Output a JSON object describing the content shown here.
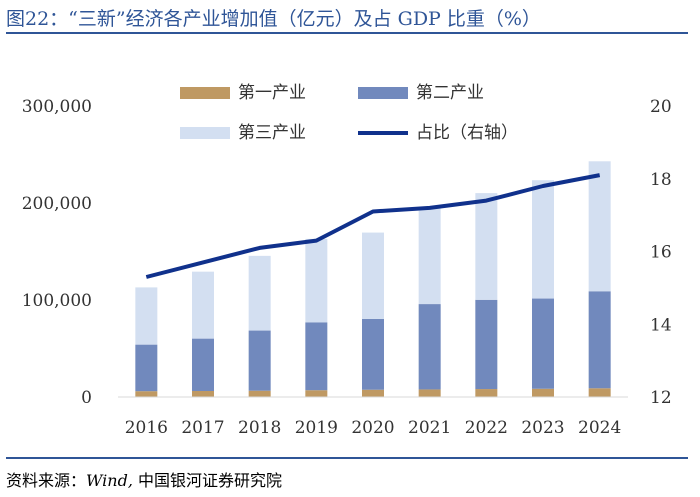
{
  "title": "图22：“三新”经济各产业增加值（亿元）及占 GDP 比重（%）",
  "source_prefix": "资料来源：",
  "source_italic": "Wind,",
  "source_rest": " 中国银河证券研究院",
  "colors": {
    "primary": "#bf9963",
    "secondary": "#7189bd",
    "tertiary": "#d3dff1",
    "share": "#10318c",
    "title": "#2f5597"
  },
  "chart_data": {
    "type": "bar",
    "stacked": true,
    "categories": [
      "2016",
      "2017",
      "2018",
      "2019",
      "2020",
      "2021",
      "2022",
      "2023",
      "2024"
    ],
    "series": [
      {
        "name": "第一产业",
        "axis": "left",
        "values": [
          6000,
          6200,
          6500,
          7000,
          7500,
          7800,
          8200,
          8500,
          9000
        ]
      },
      {
        "name": "第二产业",
        "axis": "left",
        "values": [
          48000,
          54000,
          62000,
          70000,
          73000,
          88000,
          92000,
          93000,
          100000
        ]
      },
      {
        "name": "第三产业",
        "axis": "left",
        "values": [
          59000,
          69000,
          77000,
          86000,
          89000,
          100000,
          110000,
          122000,
          134000
        ]
      },
      {
        "name": "占比（右轴）",
        "axis": "right",
        "type": "line",
        "values": [
          15.3,
          15.7,
          16.1,
          16.3,
          17.1,
          17.2,
          17.4,
          17.8,
          18.1
        ]
      }
    ],
    "y_left": {
      "min": 0,
      "max": 300000,
      "ticks": [
        0,
        100000,
        200000,
        300000
      ],
      "tick_labels": [
        "0",
        "100,000",
        "200,000",
        "300,000"
      ]
    },
    "y_right": {
      "min": 12,
      "max": 20,
      "ticks": [
        12,
        14,
        16,
        18,
        20
      ],
      "tick_labels": [
        "12",
        "14",
        "16",
        "18",
        "20"
      ]
    },
    "legend": [
      "第一产业",
      "第二产业",
      "第三产业",
      "占比（右轴）"
    ]
  }
}
